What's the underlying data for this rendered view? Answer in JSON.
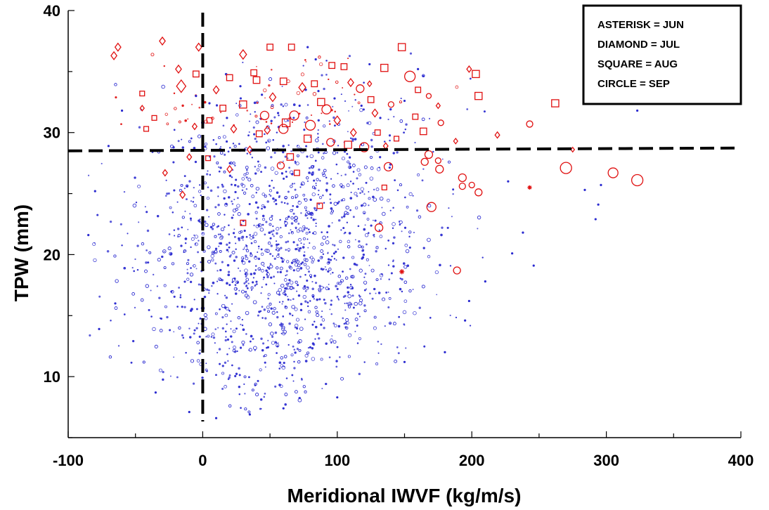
{
  "chart_data": {
    "type": "scatter",
    "title": "",
    "xlabel": "Meridional IWVF (kg/m/s)",
    "ylabel": "TPW (mm)",
    "xlim": [
      -100,
      400
    ],
    "ylim": [
      5,
      40
    ],
    "xticks": [
      -100,
      0,
      100,
      200,
      300,
      400
    ],
    "xtick_labels": [
      "-100",
      "0",
      "100",
      "200",
      "300",
      "400"
    ],
    "yticks": [
      10,
      20,
      30,
      40
    ],
    "ytick_labels": [
      "10",
      "20",
      "30",
      "40"
    ],
    "grid": false,
    "reference_lines": {
      "x": 0,
      "y": 28.5,
      "style": "dashed",
      "color": "#000000"
    },
    "legend": {
      "placement": "top-right",
      "entries": [
        "ASTERISK = JUN",
        "DIAMOND = JUL",
        "SQUARE = AUG",
        "CIRCLE = SEP"
      ]
    },
    "colors": {
      "below_threshold": "#2a2ad0",
      "above_threshold": "#e01010"
    },
    "series": [
      {
        "color": "#e01010",
        "points": [
          {
            "x": -63,
            "y": 37.0,
            "m": "diamond",
            "s": 1
          },
          {
            "x": -66,
            "y": 36.3,
            "m": "diamond",
            "s": 1
          },
          {
            "x": -30,
            "y": 37.5,
            "m": "diamond",
            "s": 1
          },
          {
            "x": -3,
            "y": 37.0,
            "m": "diamond",
            "s": 1
          },
          {
            "x": 30,
            "y": 36.4,
            "m": "diamond",
            "s": 1.2
          },
          {
            "x": 50,
            "y": 37.0,
            "m": "square",
            "s": 1
          },
          {
            "x": 66,
            "y": 37.0,
            "m": "square",
            "s": 1
          },
          {
            "x": 148,
            "y": 37.0,
            "m": "square",
            "s": 1.2
          },
          {
            "x": 135,
            "y": 35.3,
            "m": "square",
            "s": 1.2
          },
          {
            "x": 105,
            "y": 35.4,
            "m": "square",
            "s": 1
          },
          {
            "x": 96,
            "y": 35.5,
            "m": "square",
            "s": 1
          },
          {
            "x": 154,
            "y": 34.6,
            "m": "circle",
            "s": 1.5
          },
          {
            "x": 198,
            "y": 35.2,
            "m": "diamond",
            "s": 0.8
          },
          {
            "x": 203,
            "y": 34.8,
            "m": "square",
            "s": 1.2
          },
          {
            "x": 205,
            "y": 33.0,
            "m": "square",
            "s": 1.2
          },
          {
            "x": 262,
            "y": 32.4,
            "m": "square",
            "s": 1.2
          },
          {
            "x": 243,
            "y": 30.7,
            "m": "circle",
            "s": 0.9
          },
          {
            "x": 219,
            "y": 29.8,
            "m": "diamond",
            "s": 0.8
          },
          {
            "x": -18,
            "y": 35.2,
            "m": "diamond",
            "s": 1
          },
          {
            "x": -5,
            "y": 34.8,
            "m": "square",
            "s": 1
          },
          {
            "x": -16,
            "y": 33.8,
            "m": "diamond",
            "s": 1.6
          },
          {
            "x": -45,
            "y": 33.2,
            "m": "square",
            "s": 0.8
          },
          {
            "x": -45,
            "y": 32.0,
            "m": "diamond",
            "s": 0.7
          },
          {
            "x": -42,
            "y": 30.3,
            "m": "square",
            "s": 0.8
          },
          {
            "x": -36,
            "y": 31.2,
            "m": "square",
            "s": 0.8
          },
          {
            "x": 10,
            "y": 33.5,
            "m": "diamond",
            "s": 1
          },
          {
            "x": 20,
            "y": 34.5,
            "m": "square",
            "s": 1
          },
          {
            "x": 40,
            "y": 34.3,
            "m": "square",
            "s": 1.1
          },
          {
            "x": 60,
            "y": 34.2,
            "m": "square",
            "s": 1.1
          },
          {
            "x": 74,
            "y": 33.7,
            "m": "diamond",
            "s": 1.2
          },
          {
            "x": 83,
            "y": 34.0,
            "m": "square",
            "s": 1
          },
          {
            "x": 110,
            "y": 34.1,
            "m": "diamond",
            "s": 1
          },
          {
            "x": 117,
            "y": 33.6,
            "m": "circle",
            "s": 1.1
          },
          {
            "x": 125,
            "y": 32.7,
            "m": "square",
            "s": 1
          },
          {
            "x": 128,
            "y": 31.6,
            "m": "diamond",
            "s": 1
          },
          {
            "x": 140,
            "y": 32.3,
            "m": "circle",
            "s": 0.8
          },
          {
            "x": 160,
            "y": 33.5,
            "m": "square",
            "s": 0.9
          },
          {
            "x": 168,
            "y": 33.0,
            "m": "circle",
            "s": 0.7
          },
          {
            "x": 175,
            "y": 32.2,
            "m": "diamond",
            "s": 0.7
          },
          {
            "x": 158,
            "y": 31.3,
            "m": "square",
            "s": 0.9
          },
          {
            "x": 164,
            "y": 30.1,
            "m": "square",
            "s": 1.1
          },
          {
            "x": 177,
            "y": 30.8,
            "m": "circle",
            "s": 0.8
          },
          {
            "x": 112,
            "y": 30.0,
            "m": "diamond",
            "s": 1
          },
          {
            "x": 95,
            "y": 29.2,
            "m": "circle",
            "s": 1.1
          },
          {
            "x": 78,
            "y": 29.5,
            "m": "square",
            "s": 1.2
          },
          {
            "x": 60,
            "y": 30.3,
            "m": "circle",
            "s": 1.3
          },
          {
            "x": 42,
            "y": 29.9,
            "m": "square",
            "s": 1
          },
          {
            "x": 23,
            "y": 30.3,
            "m": "diamond",
            "s": 1
          },
          {
            "x": 5,
            "y": 31.0,
            "m": "square",
            "s": 0.9
          },
          {
            "x": -6,
            "y": 30.5,
            "m": "diamond",
            "s": 0.8
          },
          {
            "x": 30,
            "y": 32.3,
            "m": "square",
            "s": 1.2
          },
          {
            "x": 52,
            "y": 32.9,
            "m": "diamond",
            "s": 1.1
          },
          {
            "x": 68,
            "y": 31.4,
            "m": "circle",
            "s": 1.3
          },
          {
            "x": 88,
            "y": 32.5,
            "m": "square",
            "s": 1.2
          },
          {
            "x": 100,
            "y": 31.0,
            "m": "diamond",
            "s": 1.1
          },
          {
            "x": 46,
            "y": 31.4,
            "m": "circle",
            "s": 1.2
          },
          {
            "x": 15,
            "y": 32.0,
            "m": "square",
            "s": 1
          },
          {
            "x": 80,
            "y": 30.6,
            "m": "circle",
            "s": 1.4
          },
          {
            "x": 108,
            "y": 29.0,
            "m": "square",
            "s": 1.2
          },
          {
            "x": 120,
            "y": 28.8,
            "m": "circle",
            "s": 1.3
          },
          {
            "x": 136,
            "y": 28.9,
            "m": "diamond",
            "s": 0.8
          },
          {
            "x": 144,
            "y": 29.5,
            "m": "square",
            "s": 0.8
          },
          {
            "x": 130,
            "y": 30.0,
            "m": "square",
            "s": 0.9
          },
          {
            "x": 188,
            "y": 29.3,
            "m": "diamond",
            "s": 0.7
          },
          {
            "x": 168,
            "y": 28.2,
            "m": "circle",
            "s": 1.1
          },
          {
            "x": 165,
            "y": 27.6,
            "m": "circle",
            "s": 1
          },
          {
            "x": 175,
            "y": 27.7,
            "m": "circle",
            "s": 0.8
          },
          {
            "x": 176,
            "y": 27.0,
            "m": "circle",
            "s": 1.1
          },
          {
            "x": 138,
            "y": 27.2,
            "m": "circle",
            "s": 1.2
          },
          {
            "x": 170,
            "y": 23.9,
            "m": "circle",
            "s": 1.3
          },
          {
            "x": 131,
            "y": 22.2,
            "m": "circle",
            "s": 1.1
          },
          {
            "x": 193,
            "y": 26.3,
            "m": "circle",
            "s": 1.1
          },
          {
            "x": 193,
            "y": 25.6,
            "m": "circle",
            "s": 0.9
          },
          {
            "x": 200,
            "y": 25.7,
            "m": "circle",
            "s": 0.8
          },
          {
            "x": 205,
            "y": 25.1,
            "m": "circle",
            "s": 1
          },
          {
            "x": 270,
            "y": 27.1,
            "m": "circle",
            "s": 1.6
          },
          {
            "x": 305,
            "y": 26.7,
            "m": "circle",
            "s": 1.4
          },
          {
            "x": 323,
            "y": 26.1,
            "m": "circle",
            "s": 1.6
          },
          {
            "x": 189,
            "y": 18.7,
            "m": "circle",
            "s": 1
          },
          {
            "x": 148,
            "y": 18.6,
            "m": "asterisk",
            "s": 0.8
          },
          {
            "x": 243,
            "y": 25.5,
            "m": "asterisk",
            "s": 0.7
          },
          {
            "x": 275,
            "y": 28.6,
            "m": "diamond",
            "s": 0.6
          },
          {
            "x": 135,
            "y": 25.5,
            "m": "square",
            "s": 0.8
          },
          {
            "x": 87,
            "y": 24.0,
            "m": "square",
            "s": 0.9
          },
          {
            "x": 70,
            "y": 26.7,
            "m": "square",
            "s": 0.9
          },
          {
            "x": 58,
            "y": 27.3,
            "m": "circle",
            "s": 1
          },
          {
            "x": 65,
            "y": 28.0,
            "m": "square",
            "s": 1.1
          },
          {
            "x": 35,
            "y": 28.6,
            "m": "diamond",
            "s": 0.9
          },
          {
            "x": 20,
            "y": 27.0,
            "m": "diamond",
            "s": 0.9
          },
          {
            "x": 4,
            "y": 27.9,
            "m": "square",
            "s": 0.8
          },
          {
            "x": -10,
            "y": 28.0,
            "m": "diamond",
            "s": 0.8
          },
          {
            "x": -28,
            "y": 26.7,
            "m": "diamond",
            "s": 0.8
          },
          {
            "x": -15,
            "y": 24.9,
            "m": "diamond",
            "s": 0.9
          },
          {
            "x": 30,
            "y": 22.6,
            "m": "square",
            "s": 0.9
          },
          {
            "x": 48,
            "y": 30.2,
            "m": "diamond",
            "s": 1
          },
          {
            "x": 62,
            "y": 30.8,
            "m": "square",
            "s": 1.3
          },
          {
            "x": 92,
            "y": 31.9,
            "m": "circle",
            "s": 1.3
          },
          {
            "x": 38,
            "y": 34.9,
            "m": "square",
            "s": 1
          },
          {
            "x": 124,
            "y": 34.0,
            "m": "diamond",
            "s": 0.7
          }
        ]
      },
      {
        "color": "#2a2ad0",
        "points": [
          {
            "x": -5,
            "y": 33.0
          },
          {
            "x": 5,
            "y": 32.4
          },
          {
            "x": 18,
            "y": 31.2
          },
          {
            "x": 28,
            "y": 33.8
          },
          {
            "x": 44,
            "y": 33.1
          },
          {
            "x": 56,
            "y": 31.6
          },
          {
            "x": 72,
            "y": 32.2
          },
          {
            "x": 86,
            "y": 33.4
          },
          {
            "x": 98,
            "y": 32.8
          },
          {
            "x": 118,
            "y": 32.2
          },
          {
            "x": 132,
            "y": 31.2
          },
          {
            "x": 150,
            "y": 32.6
          },
          {
            "x": 160,
            "y": 35.2
          },
          {
            "x": 124,
            "y": 35.6
          },
          {
            "x": 84,
            "y": 36.0
          },
          {
            "x": 78,
            "y": 37.0
          },
          {
            "x": -60,
            "y": 31.8
          },
          {
            "x": -70,
            "y": 28.9
          },
          {
            "x": -80,
            "y": 25.2
          },
          {
            "x": -85,
            "y": 21.6
          },
          {
            "x": -77,
            "y": 13.9
          },
          {
            "x": -65,
            "y": 16.0
          },
          {
            "x": -35,
            "y": 8.7
          },
          {
            "x": -10,
            "y": 7.1
          },
          {
            "x": 10,
            "y": 6.6
          },
          {
            "x": 35,
            "y": 6.9
          },
          {
            "x": 60,
            "y": 7.4
          },
          {
            "x": 100,
            "y": 8.3
          },
          {
            "x": 150,
            "y": 11.2
          },
          {
            "x": 180,
            "y": 12.0
          },
          {
            "x": 195,
            "y": 14.6
          },
          {
            "x": 198,
            "y": 16.2
          },
          {
            "x": 210,
            "y": 17.8
          },
          {
            "x": 230,
            "y": 20.1
          },
          {
            "x": 238,
            "y": 21.8
          },
          {
            "x": 246,
            "y": 19.1
          },
          {
            "x": 227,
            "y": 26.0
          },
          {
            "x": 284,
            "y": 25.3
          },
          {
            "x": 294,
            "y": 24.1
          },
          {
            "x": 296,
            "y": 25.7
          },
          {
            "x": 323,
            "y": 31.8
          },
          {
            "x": 292,
            "y": 22.9
          }
        ]
      }
    ]
  }
}
